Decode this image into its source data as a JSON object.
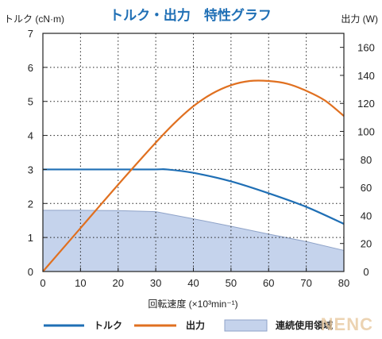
{
  "chart_data": {
    "type": "line",
    "title": "トルク・出力　特性グラフ",
    "xlabel": "回転速度 (×10³min⁻¹)",
    "ylabel_left": "トルク (cN·m)",
    "ylabel_right": "出力 (W)",
    "xlim": [
      0,
      80
    ],
    "ylim_left": [
      0,
      7
    ],
    "ylim_right": [
      0,
      170
    ],
    "x_ticks": [
      0,
      10,
      20,
      30,
      40,
      50,
      60,
      70,
      80
    ],
    "y_left_ticks": [
      0,
      1,
      2,
      3,
      4,
      5,
      6,
      7
    ],
    "y_right_ticks": [
      0,
      20,
      40,
      60,
      80,
      100,
      120,
      140,
      160
    ],
    "grid": true,
    "legend_position": "bottom",
    "series": [
      {
        "name": "トルク",
        "axis": "left",
        "color": "#1f6fb5",
        "x": [
          0,
          10,
          20,
          30,
          33,
          40,
          50,
          60,
          70,
          80
        ],
        "y": [
          3.0,
          3.0,
          3.0,
          3.0,
          3.0,
          2.9,
          2.65,
          2.3,
          1.9,
          1.4
        ]
      },
      {
        "name": "出力",
        "axis": "right",
        "color": "#e07020",
        "x": [
          0,
          10,
          20,
          30,
          35,
          40,
          45,
          50,
          55,
          60,
          65,
          70,
          75,
          80
        ],
        "y": [
          0,
          31,
          62,
          92,
          106,
          118,
          127,
          133,
          136,
          136,
          134,
          129,
          122,
          111
        ]
      },
      {
        "name": "連続使用領域",
        "axis": "left",
        "kind": "area",
        "color": "#c5d3ec",
        "edge_color": "#8fa3c8",
        "x": [
          0,
          10,
          20,
          30,
          40,
          50,
          60,
          70,
          80
        ],
        "y": [
          1.8,
          1.8,
          1.79,
          1.76,
          1.55,
          1.33,
          1.1,
          0.88,
          0.62
        ]
      }
    ]
  },
  "watermark": "NENC"
}
